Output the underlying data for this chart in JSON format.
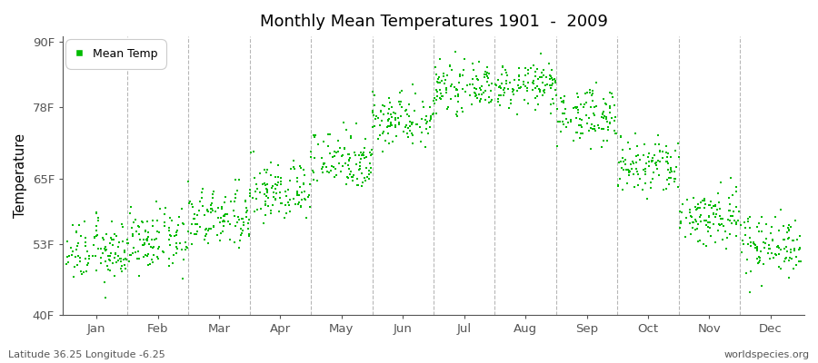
{
  "title": "Monthly Mean Temperatures 1901  -  2009",
  "ylabel": "Temperature",
  "lat_label": "Latitude 36.25 Longitude -6.25",
  "source_label": "worldspecies.org",
  "months": [
    "Jan",
    "Feb",
    "Mar",
    "Apr",
    "May",
    "Jun",
    "Jul",
    "Aug",
    "Sep",
    "Oct",
    "Nov",
    "Dec"
  ],
  "month_means_f": [
    51.5,
    53.5,
    57.5,
    62.5,
    68.5,
    76.0,
    81.5,
    82.0,
    76.5,
    67.0,
    58.0,
    53.0
  ],
  "month_stds_f": [
    2.8,
    2.8,
    2.8,
    2.8,
    2.8,
    2.5,
    2.0,
    2.0,
    2.5,
    2.8,
    2.8,
    2.8
  ],
  "n_years": 109,
  "yticks": [
    40,
    53,
    65,
    78,
    90
  ],
  "ytick_labels": [
    "40F",
    "53F",
    "65F",
    "78F",
    "90F"
  ],
  "ylim": [
    40,
    91
  ],
  "marker_color": "#00BB00",
  "marker_size": 4,
  "bg_color": "#FFFFFF",
  "fig_bg_color": "#FFFFFF",
  "grid_color": "#999999",
  "legend_label": "Mean Temp"
}
